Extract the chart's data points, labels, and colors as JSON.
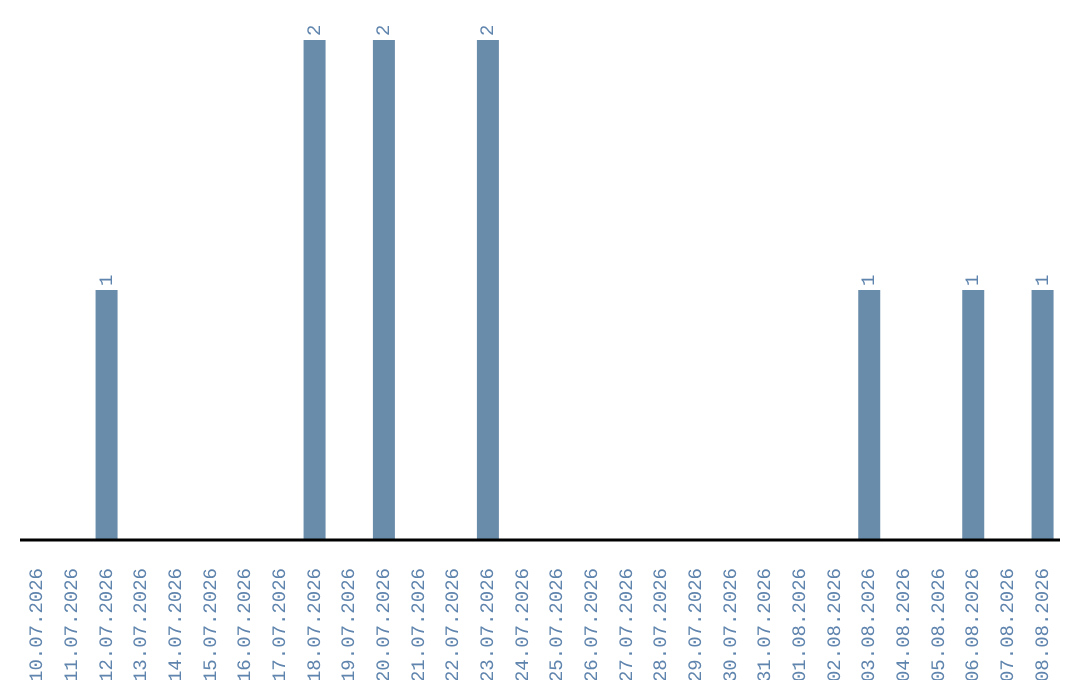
{
  "chart_data": {
    "type": "bar",
    "categories": [
      "10.07.2026",
      "11.07.2026",
      "12.07.2026",
      "13.07.2026",
      "14.07.2026",
      "15.07.2026",
      "16.07.2026",
      "17.07.2026",
      "18.07.2026",
      "19.07.2026",
      "20.07.2026",
      "21.07.2026",
      "22.07.2026",
      "23.07.2026",
      "24.07.2026",
      "25.07.2026",
      "26.07.2026",
      "27.07.2026",
      "28.07.2026",
      "29.07.2026",
      "30.07.2026",
      "31.07.2026",
      "01.08.2026",
      "02.08.2026",
      "03.08.2026",
      "04.08.2026",
      "05.08.2026",
      "06.08.2026",
      "07.08.2026",
      "08.08.2026"
    ],
    "values": [
      0,
      0,
      1,
      0,
      0,
      0,
      0,
      0,
      2,
      0,
      2,
      0,
      0,
      2,
      0,
      0,
      0,
      0,
      0,
      0,
      0,
      0,
      0,
      0,
      1,
      0,
      0,
      1,
      0,
      1
    ],
    "value_labels": [
      null,
      null,
      "1",
      null,
      null,
      null,
      null,
      null,
      "2",
      null,
      "2",
      null,
      null,
      "2",
      null,
      null,
      null,
      null,
      null,
      null,
      null,
      null,
      null,
      null,
      "1",
      null,
      null,
      "1",
      null,
      "1"
    ],
    "color": "#6a8cab"
  }
}
